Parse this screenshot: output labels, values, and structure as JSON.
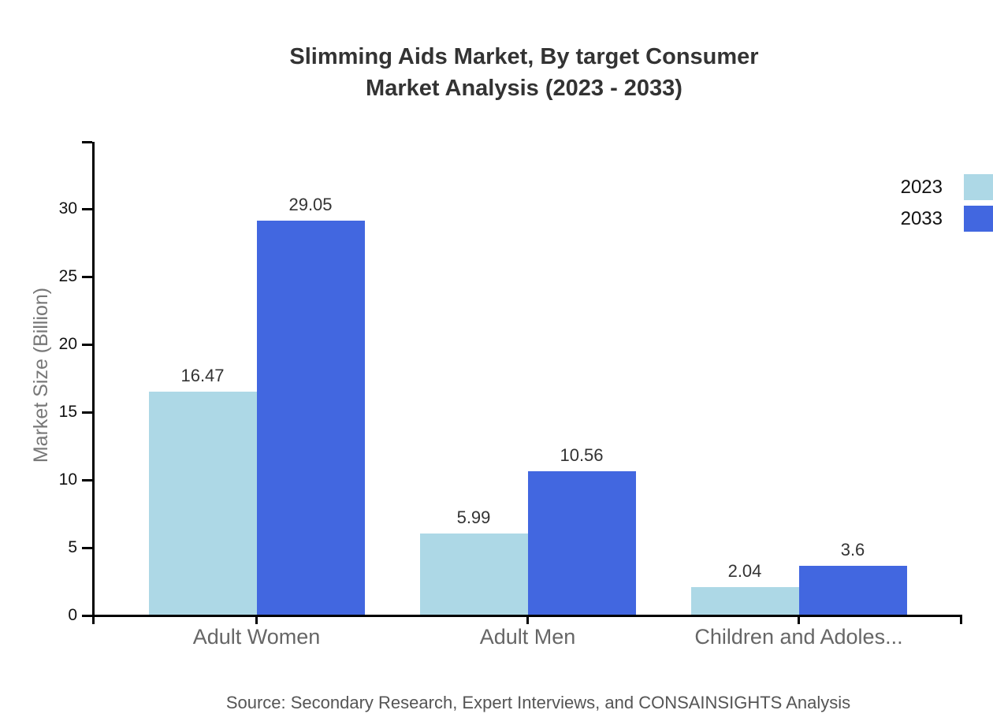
{
  "title": {
    "line1": "Slimming Aids Market, By target Consumer",
    "line2": "Market Analysis (2023 - 2033)"
  },
  "source": "Source: Secondary Research, Expert Interviews, and CONSAINSIGHTS Analysis",
  "colors": {
    "series_2023": "#ADD8E6",
    "series_2033": "#4267E0",
    "axis": "#000000",
    "title_text": "#333333",
    "category_text": "#666666",
    "value_label_text": "#333333",
    "axis_title_text": "#777777",
    "source_text": "#555555"
  },
  "chart_data": {
    "type": "bar",
    "title": "Slimming Aids Market, By target Consumer Market Analysis (2023 - 2033)",
    "categories": [
      "Adult Women",
      "Adult Men",
      "Children and Adoles..."
    ],
    "series": [
      {
        "name": "2023",
        "color": "#ADD8E6",
        "values": [
          16.47,
          5.99,
          2.04
        ]
      },
      {
        "name": "2033",
        "color": "#4267E0",
        "values": [
          29.05,
          10.56,
          3.6
        ]
      }
    ],
    "xlabel": "",
    "ylabel": "Market Size (Billion)",
    "yticks": [
      0,
      5,
      10,
      15,
      20,
      25,
      30
    ],
    "ylim": [
      0,
      35
    ],
    "grid": false,
    "legend_position": "top-right",
    "legend": [
      "2023",
      "2033"
    ]
  }
}
